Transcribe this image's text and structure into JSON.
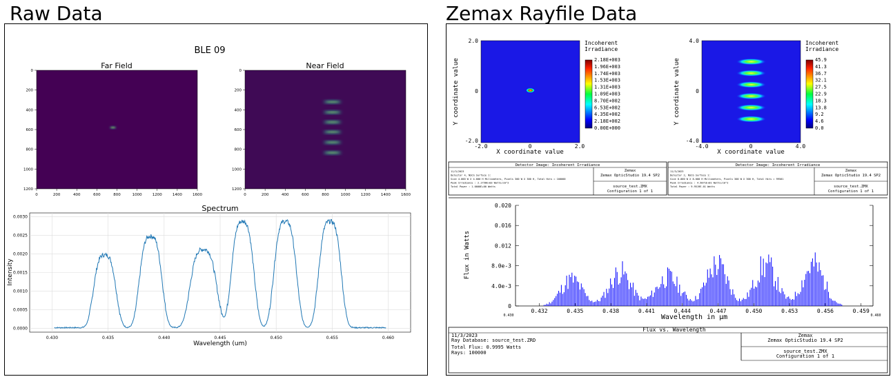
{
  "left": {
    "heading": "Raw Data",
    "figure_title": "BLE 09",
    "far_field": {
      "title": "Far Field",
      "x_ticks": [
        "0",
        "200",
        "400",
        "600",
        "800",
        "1000",
        "1200",
        "1400",
        "1600"
      ],
      "y_ticks": [
        "0",
        "200",
        "400",
        "600",
        "800",
        "1000",
        "1200"
      ]
    },
    "near_field": {
      "title": "Near Field",
      "x_ticks": [
        "0",
        "200",
        "400",
        "600",
        "800",
        "1000",
        "1200",
        "1400",
        "1600"
      ],
      "y_ticks": [
        "0",
        "200",
        "400",
        "600",
        "800",
        "1000",
        "1200"
      ]
    },
    "colors": {
      "viridis_bg": "#440154",
      "near_bg": "#3f0a55",
      "line": "#1f77b4"
    }
  },
  "right": {
    "heading": "Zemax Rayfile Data",
    "det1": {
      "legend_title_1": "Incoherent",
      "legend_title_2": "Irradiance",
      "scale_labels": [
        "2.18E+003",
        "1.96E+003",
        "1.74E+003",
        "1.53E+003",
        "1.31E+003",
        "1.09E+003",
        "8.70E+002",
        "6.53E+002",
        "4.35E+002",
        "2.18E+002",
        "0.00E+000"
      ],
      "x_ticks": [
        "-2.0",
        "0",
        "2.0"
      ],
      "y_ticks": [
        "2.0",
        "0",
        "-2.0"
      ],
      "xlabel": "X coordinate value",
      "ylabel": "Y coordinate value"
    },
    "det2": {
      "legend_title_1": "Incoherent",
      "legend_title_2": "Irradiance",
      "scale_labels": [
        "45.9",
        "41.3",
        "36.7",
        "32.1",
        "27.5",
        "22.9",
        "18.3",
        "13.8",
        "9.2",
        "4.6",
        "0.0"
      ],
      "x_ticks": [
        "-4.0",
        "0",
        "4.0"
      ],
      "y_ticks": [
        "4.0",
        "0",
        "-4.0"
      ],
      "xlabel": "X coordinate value",
      "ylabel": "Y coordinate value"
    },
    "info1": {
      "header": "Detector Image: Incoherent Irradiance",
      "lines": [
        "11/3/2023",
        "Detector 4, NSCG Surface 1:",
        "Size 4.000 W X 4.000 H Millimeters, Pixels 300 W X 300 H, Total Hits = 100000",
        "Peak Irradiance : 2.1756E+03 Watts/cm^2",
        "Total Power     : 1.0000E+00 Watts"
      ],
      "brand": "Zemax",
      "brand_sub": "Zemax OpticStudio 19.4 SP2",
      "file": "source_test.ZMX",
      "config": "Configuration 1 of 1"
    },
    "info2": {
      "header": "Detector Image: Incoherent Irradiance",
      "lines": [
        "11/3/2023",
        "Detector 2, NSCG Surface 1:",
        "Size 8.000 W X 8.000 H Millimeters, Pixels 300 W X 300 H, Total Hits = 99501",
        "Peak Irradiance : 4.5871E+01 Watts/cm^2",
        "Total Power     : 9.9519E-01 Watts"
      ],
      "brand": "Zemax",
      "brand_sub": "Zemax OpticStudio 19.4 SP2",
      "file": "source_test.ZMX",
      "config": "Configuration 1 of 1"
    },
    "flux": {
      "xlabel": "Wavelength in µm",
      "ylabel": "Flux in Watts",
      "y_ticks": [
        "0.020",
        "0.016",
        "0.012",
        "8.0e-3",
        "4.0e-3",
        "0"
      ],
      "x_ticks": [
        "0.432",
        "0.435",
        "0.438",
        "0.441",
        "0.444",
        "0.447",
        "0.450",
        "0.453",
        "0.456",
        "0.459"
      ],
      "x_edge_left": "0.430",
      "x_edge_right": "0.460",
      "caption": "Flux vs. Wavelength",
      "color": "#0000ff"
    },
    "footer": {
      "date": "11/3/2023",
      "db": "Ray Database: source_test.ZRD",
      "flux": "Total Flux: 0.9995 Watts",
      "rays": "Rays: 100000",
      "brand": "Zemax",
      "brand_sub": "Zemax OpticStudio 19.4 SP2",
      "file": "source_test.ZMX",
      "config": "Configuration 1 of 1"
    }
  },
  "chart_data": [
    {
      "type": "heatmap",
      "title": "Far Field",
      "xlim": [
        0,
        1600
      ],
      "ylim": [
        1200,
        0
      ],
      "spots": [
        {
          "x": 760,
          "y": 580,
          "w": 60,
          "h": 20
        }
      ]
    },
    {
      "type": "heatmap",
      "title": "Near Field",
      "xlim": [
        0,
        1600
      ],
      "ylim": [
        1200,
        0
      ],
      "spots": [
        {
          "x": 870,
          "y": 320,
          "w": 180,
          "h": 28
        },
        {
          "x": 870,
          "y": 425,
          "w": 180,
          "h": 28
        },
        {
          "x": 870,
          "y": 525,
          "w": 180,
          "h": 28
        },
        {
          "x": 870,
          "y": 625,
          "w": 180,
          "h": 28
        },
        {
          "x": 870,
          "y": 730,
          "w": 180,
          "h": 28
        },
        {
          "x": 870,
          "y": 835,
          "w": 180,
          "h": 28
        }
      ]
    },
    {
      "type": "line",
      "title": "Spectrum",
      "xlabel": "Wavelength (um)",
      "ylabel": "Intensity",
      "xlim": [
        0.428,
        0.462
      ],
      "ylim": [
        -0.0001,
        0.0031
      ],
      "x_ticks": [
        0.43,
        0.435,
        0.44,
        0.445,
        0.45,
        0.455,
        0.46
      ],
      "y_ticks": [
        0.0,
        0.0005,
        0.001,
        0.0015,
        0.002,
        0.0025,
        0.003
      ],
      "grid": true,
      "peaks": [
        {
          "center": 0.4347,
          "amplitude": 0.00195,
          "width": 0.0011
        },
        {
          "center": 0.4388,
          "amplitude": 0.00245,
          "width": 0.0011
        },
        {
          "center": 0.4435,
          "amplitude": 0.0021,
          "width": 0.0013
        },
        {
          "center": 0.447,
          "amplitude": 0.00285,
          "width": 0.0011
        },
        {
          "center": 0.4508,
          "amplitude": 0.00285,
          "width": 0.0011
        },
        {
          "center": 0.4548,
          "amplitude": 0.00285,
          "width": 0.0011
        }
      ]
    },
    {
      "type": "heatmap",
      "title": "Detector Image: Incoherent Irradiance",
      "xlim": [
        -2.0,
        2.0
      ],
      "ylim": [
        -2.0,
        2.0
      ],
      "spots": [
        {
          "x": 0.0,
          "y": 0.05,
          "w": 0.35,
          "h": 0.18
        }
      ]
    },
    {
      "type": "heatmap",
      "title": "Detector Image: Incoherent Irradiance",
      "xlim": [
        -4.0,
        4.0
      ],
      "ylim": [
        -4.0,
        4.0
      ],
      "spots": [
        {
          "x": 0.0,
          "y": 2.35,
          "w": 2.4,
          "h": 0.5
        },
        {
          "x": 0.0,
          "y": 1.45,
          "w": 2.4,
          "h": 0.5
        },
        {
          "x": 0.0,
          "y": 0.55,
          "w": 2.4,
          "h": 0.5
        },
        {
          "x": 0.0,
          "y": -0.35,
          "w": 2.4,
          "h": 0.5
        },
        {
          "x": 0.0,
          "y": -1.25,
          "w": 2.4,
          "h": 0.5
        },
        {
          "x": 0.0,
          "y": -2.15,
          "w": 2.4,
          "h": 0.5
        }
      ]
    },
    {
      "type": "bar",
      "title": "Flux vs. Wavelength",
      "xlabel": "Wavelength in µm",
      "ylabel": "Flux in Watts",
      "xlim": [
        0.43,
        0.46
      ],
      "ylim": [
        0,
        0.02
      ],
      "peaks": [
        {
          "center": 0.4347,
          "amplitude": 0.0072,
          "width": 0.0009
        },
        {
          "center": 0.4388,
          "amplitude": 0.0092,
          "width": 0.0009
        },
        {
          "center": 0.4428,
          "amplitude": 0.0078,
          "width": 0.001
        },
        {
          "center": 0.4469,
          "amplitude": 0.0112,
          "width": 0.0009
        },
        {
          "center": 0.451,
          "amplitude": 0.0112,
          "width": 0.0009
        },
        {
          "center": 0.455,
          "amplitude": 0.0112,
          "width": 0.0009
        }
      ]
    }
  ]
}
